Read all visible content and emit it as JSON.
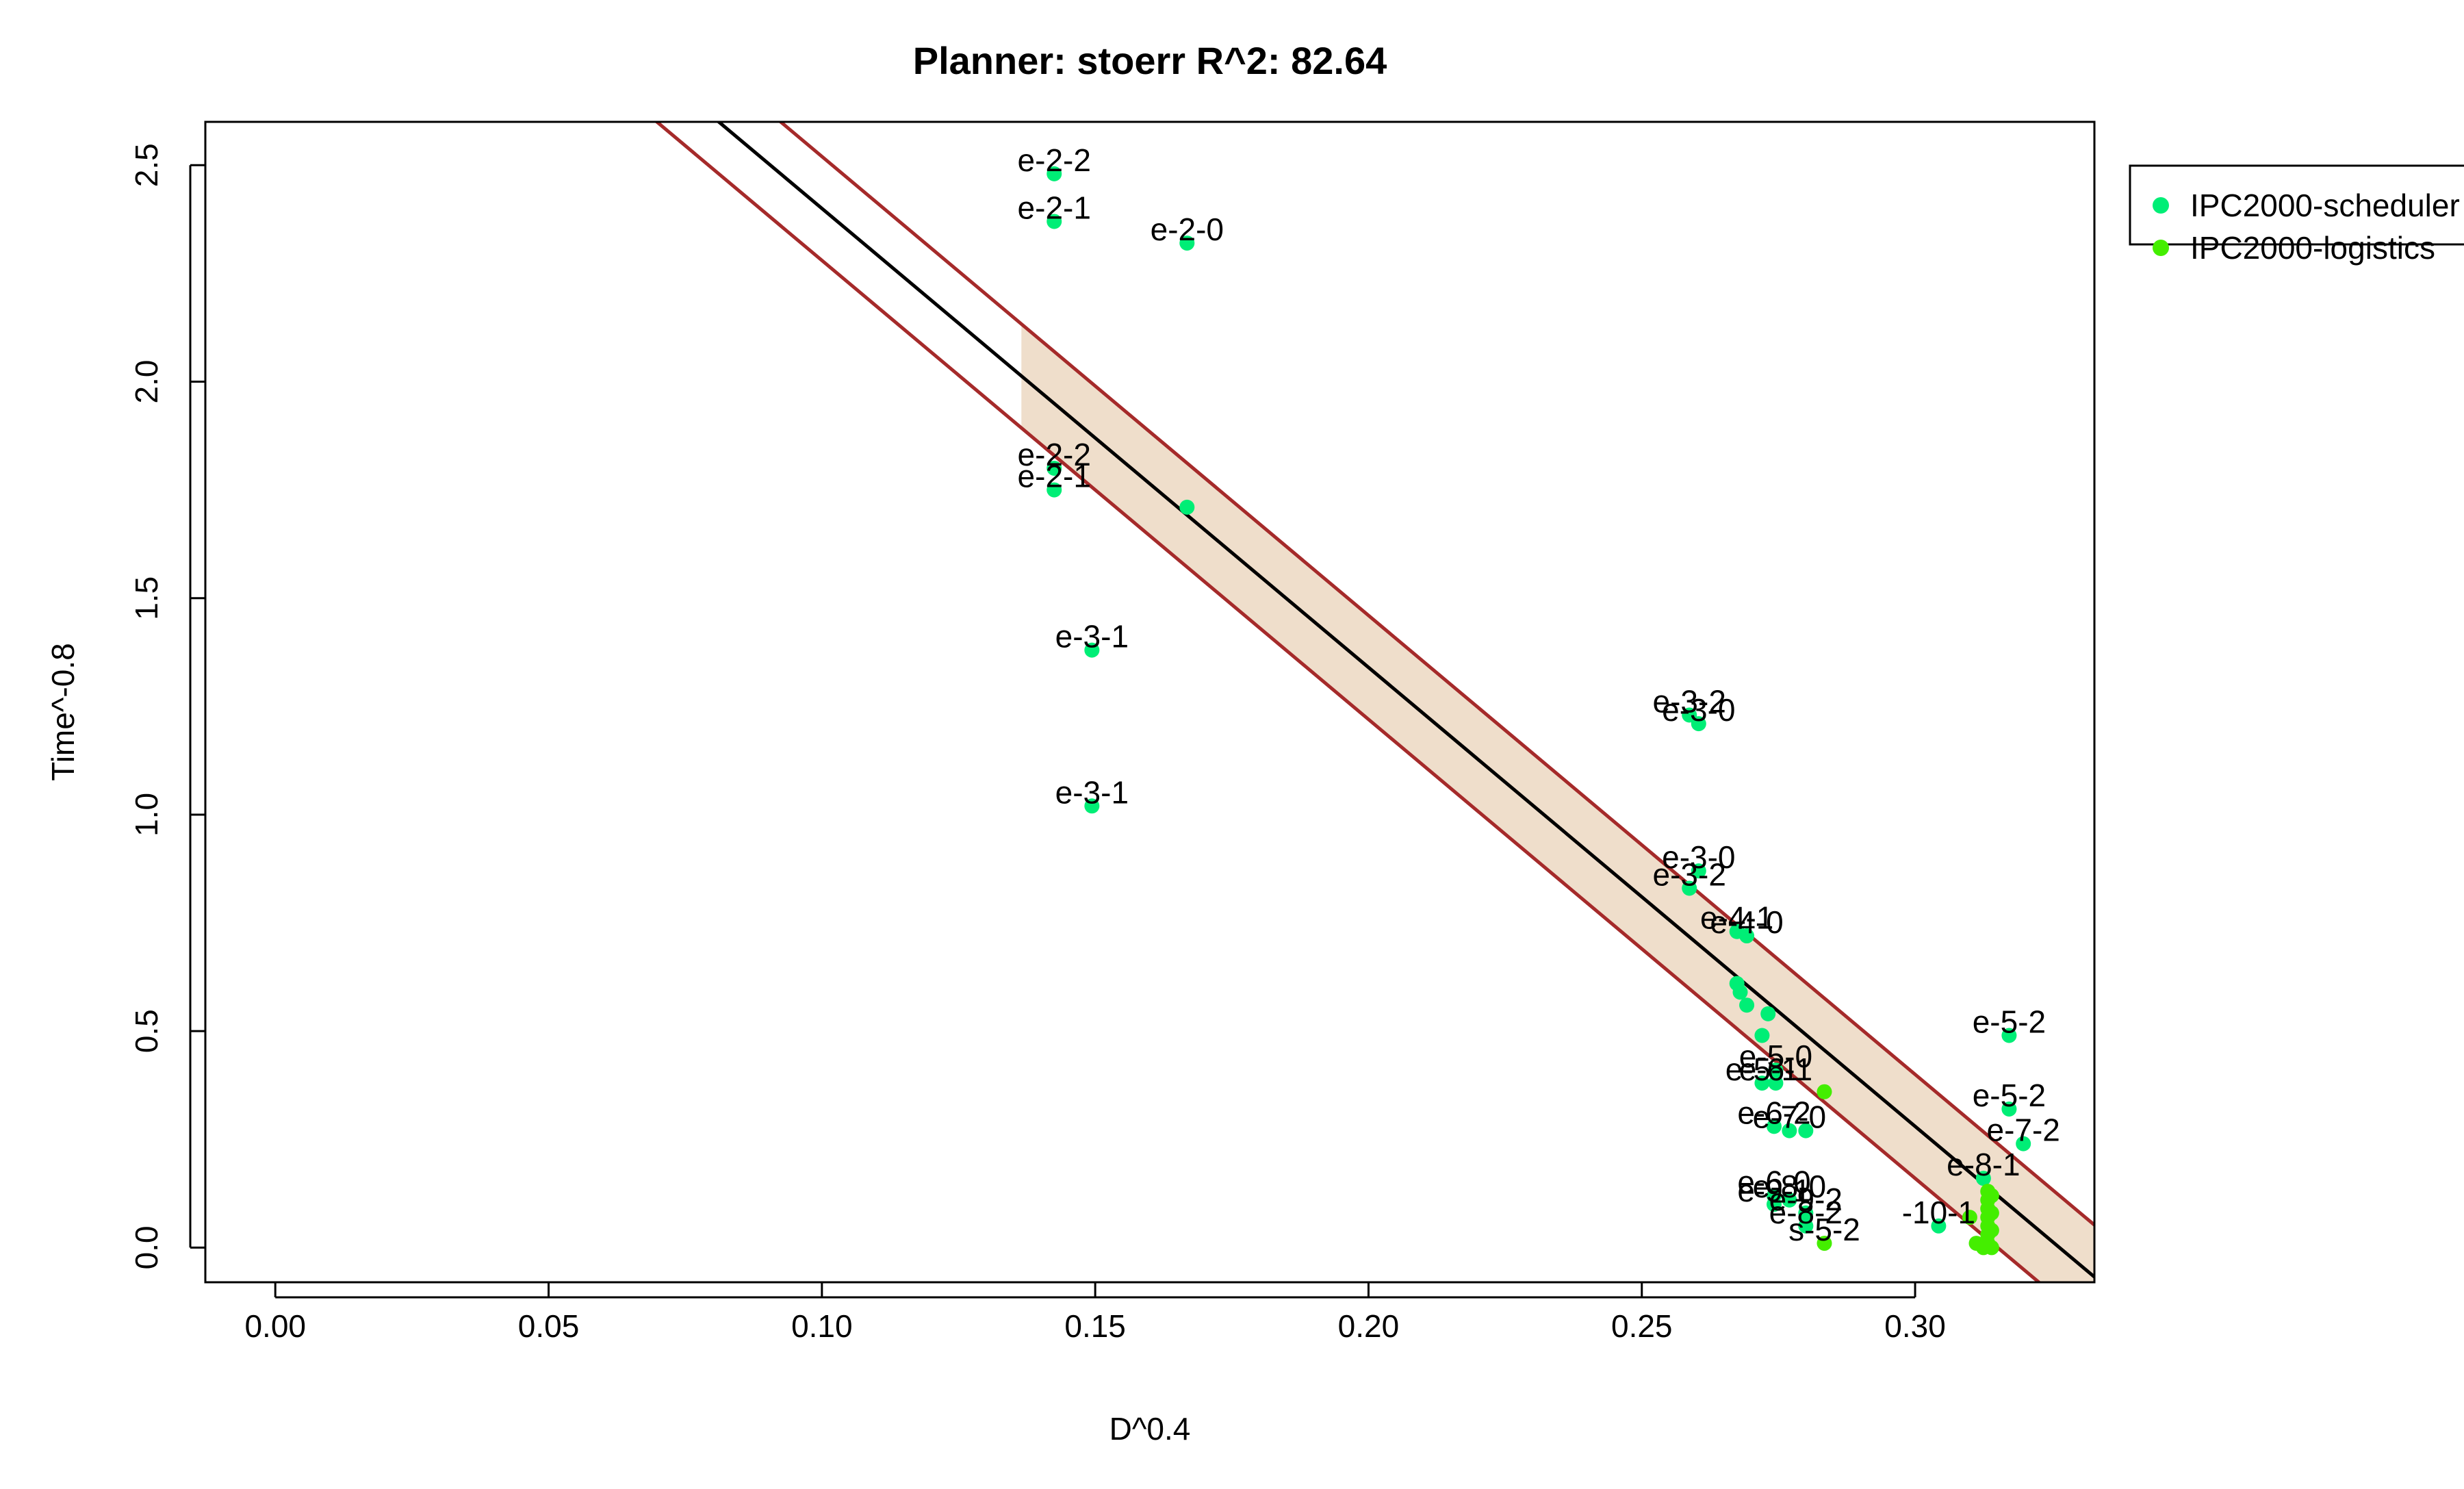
{
  "colors": {
    "fit_line": "#000000",
    "pred_band_line": "#a52a2a",
    "conf_band_fill": "#efdecb",
    "scheduler": "#00ee76",
    "logistics": "#44ee00"
  },
  "chart_data": {
    "type": "scatter",
    "title": "Planner: stoerr R^2: 82.64",
    "xlabel": "D^0.4",
    "ylabel": "Time^-0.8",
    "xlim": [
      -0.0128,
      0.3328
    ],
    "ylim": [
      -0.08,
      2.6
    ],
    "xticks": [
      "0.00",
      "0.05",
      "0.10",
      "0.15",
      "0.20",
      "0.25",
      "0.30"
    ],
    "yticks": [
      "0.0",
      "0.5",
      "1.0",
      "1.5",
      "2.0",
      "2.5"
    ],
    "grid": false,
    "legend_position": "top-right (outside plot)",
    "fit": {
      "slope": -10.6,
      "intercept": 3.46
    },
    "prediction_interval_halfwidth": 0.12,
    "confidence_band": {
      "x_from": 0.1365,
      "x_to": 0.3328,
      "halfwidth": 0.12
    },
    "series": [
      {
        "name": "IPC2000-scheduler",
        "color": "#00ee76",
        "points": [
          {
            "x": 0.1425,
            "y": 2.48,
            "label": "e-2-2"
          },
          {
            "x": 0.1425,
            "y": 2.37,
            "label": "e-2-1"
          },
          {
            "x": 0.1668,
            "y": 2.32,
            "label": "e-2-0"
          },
          {
            "x": 0.1425,
            "y": 1.8,
            "label": "e-2-2"
          },
          {
            "x": 0.1425,
            "y": 1.75,
            "label": "e-2-1"
          },
          {
            "x": 0.1668,
            "y": 1.71,
            "label": ""
          },
          {
            "x": 0.1494,
            "y": 1.38,
            "label": "e-3-1"
          },
          {
            "x": 0.1494,
            "y": 1.02,
            "label": "e-3-1"
          },
          {
            "x": 0.2587,
            "y": 1.23,
            "label": "e-3-2"
          },
          {
            "x": 0.2604,
            "y": 1.21,
            "label": "e-3-0"
          },
          {
            "x": 0.2604,
            "y": 0.87,
            "label": "e-3-0"
          },
          {
            "x": 0.2587,
            "y": 0.83,
            "label": "e-3-2"
          },
          {
            "x": 0.2674,
            "y": 0.73,
            "label": "e-4-1"
          },
          {
            "x": 0.2692,
            "y": 0.72,
            "label": "e-4-0"
          },
          {
            "x": 0.2674,
            "y": 0.61,
            "label": ""
          },
          {
            "x": 0.268,
            "y": 0.59,
            "label": ""
          },
          {
            "x": 0.2692,
            "y": 0.56,
            "label": ""
          },
          {
            "x": 0.2731,
            "y": 0.54,
            "label": ""
          },
          {
            "x": 0.272,
            "y": 0.49,
            "label": ""
          },
          {
            "x": 0.2745,
            "y": 0.41,
            "label": "e-5-0"
          },
          {
            "x": 0.272,
            "y": 0.38,
            "label": "e-5-1"
          },
          {
            "x": 0.2745,
            "y": 0.38,
            "label": "e-6-1"
          },
          {
            "x": 0.2742,
            "y": 0.28,
            "label": "e-6-2"
          },
          {
            "x": 0.277,
            "y": 0.27,
            "label": "e-7-0"
          },
          {
            "x": 0.28,
            "y": 0.27,
            "label": ""
          },
          {
            "x": 0.2742,
            "y": 0.12,
            "label": "e-6-0"
          },
          {
            "x": 0.277,
            "y": 0.11,
            "label": "e-8-0"
          },
          {
            "x": 0.2742,
            "y": 0.1,
            "label": "e-9-1"
          },
          {
            "x": 0.28,
            "y": 0.08,
            "label": "e-9-2"
          },
          {
            "x": 0.28,
            "y": 0.05,
            "label": "e-8-2"
          },
          {
            "x": 0.3172,
            "y": 0.49,
            "label": "e-5-2"
          },
          {
            "x": 0.3172,
            "y": 0.32,
            "label": "e-5-2"
          },
          {
            "x": 0.3198,
            "y": 0.24,
            "label": "e-7-2"
          },
          {
            "x": 0.3125,
            "y": 0.16,
            "label": "e-8-1"
          },
          {
            "x": 0.3043,
            "y": 0.05,
            "label": "-10-1"
          }
        ]
      },
      {
        "name": "IPC2000-logistics",
        "color": "#44ee00",
        "points": [
          {
            "x": 0.2834,
            "y": 0.36,
            "label": ""
          },
          {
            "x": 0.2834,
            "y": 0.01,
            "label": "s-5-2"
          },
          {
            "x": 0.31,
            "y": 0.07,
            "label": ""
          },
          {
            "x": 0.3112,
            "y": 0.01,
            "label": ""
          },
          {
            "x": 0.3125,
            "y": 0.0,
            "label": ""
          },
          {
            "x": 0.3133,
            "y": 0.13,
            "label": ""
          },
          {
            "x": 0.3133,
            "y": 0.11,
            "label": ""
          },
          {
            "x": 0.3133,
            "y": 0.09,
            "label": ""
          },
          {
            "x": 0.3133,
            "y": 0.07,
            "label": ""
          },
          {
            "x": 0.3133,
            "y": 0.05,
            "label": ""
          },
          {
            "x": 0.3133,
            "y": 0.03,
            "label": ""
          },
          {
            "x": 0.3133,
            "y": 0.01,
            "label": ""
          },
          {
            "x": 0.314,
            "y": 0.12,
            "label": ""
          },
          {
            "x": 0.314,
            "y": 0.08,
            "label": ""
          },
          {
            "x": 0.314,
            "y": 0.04,
            "label": ""
          },
          {
            "x": 0.314,
            "y": 0.0,
            "label": ""
          }
        ]
      }
    ]
  }
}
